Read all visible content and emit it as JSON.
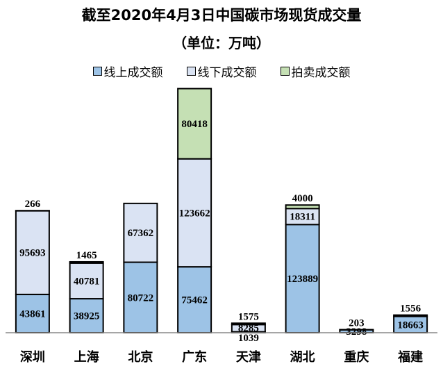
{
  "chart_data": {
    "type": "bar",
    "stacked": true,
    "title": "截至2020年4月3日中国碳市场现货成交量",
    "subtitle": "（单位：万吨）",
    "categories": [
      "深圳",
      "上海",
      "北京",
      "广东",
      "天津",
      "湖北",
      "重庆",
      "福建"
    ],
    "series": [
      {
        "name": "线上成交额",
        "color": "#9dc3e6",
        "values": [
          43861,
          38925,
          80722,
          75462,
          1039,
          123889,
          3298,
          18663
        ]
      },
      {
        "name": "线下成交额",
        "color": "#dae3f3",
        "values": [
          95693,
          40781,
          67362,
          123662,
          8285,
          18311,
          0,
          0
        ]
      },
      {
        "name": "拍卖成交额",
        "color": "#c5e0b4",
        "values": [
          266,
          1465,
          0,
          80418,
          1575,
          4000,
          203,
          1556
        ]
      }
    ],
    "ylim": [
      0,
      280000
    ],
    "grid": false,
    "legend_position": "top"
  }
}
